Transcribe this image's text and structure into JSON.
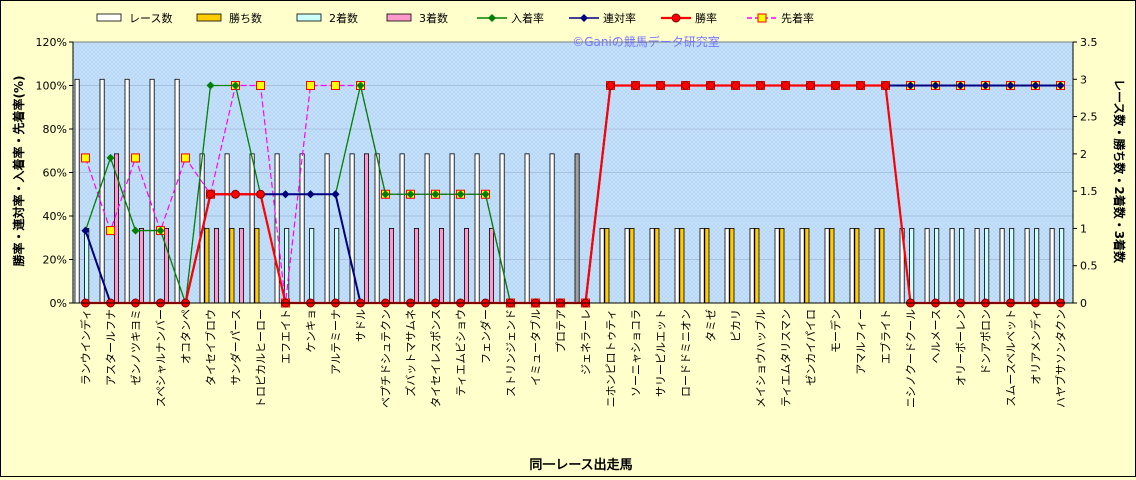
{
  "chart_data": {
    "type": "bar+line",
    "watermark": "©Ganiの競馬データ研究室",
    "xlabel": "同一レース出走馬",
    "ylabel_left": "勝率・連対率・入着率・先着率(%)",
    "ylabel_right": "レース数・勝ち数・2着数・3着数",
    "ylim_left": [
      0,
      120
    ],
    "ylim_right": [
      0,
      3.5
    ],
    "left_ticks": [
      "0%",
      "20%",
      "40%",
      "60%",
      "80%",
      "100%",
      "120%"
    ],
    "right_ticks": [
      "0",
      "0.5",
      "1",
      "1.5",
      "2",
      "2.5",
      "3",
      "3.5"
    ],
    "legend": [
      {
        "name": "レース数",
        "kind": "bar",
        "color": "#ffffff"
      },
      {
        "name": "勝ち数",
        "kind": "bar",
        "color": "#ffcc00"
      },
      {
        "name": "2着数",
        "kind": "bar",
        "color": "#ccffff"
      },
      {
        "name": "3着数",
        "kind": "bar",
        "color": "#ff99cc"
      },
      {
        "name": "入着率",
        "kind": "line",
        "color": "#008000"
      },
      {
        "name": "連対率",
        "kind": "line",
        "color": "#000080"
      },
      {
        "name": "勝率",
        "kind": "line",
        "color": "#ff0000"
      },
      {
        "name": "先着率",
        "kind": "line",
        "color": "#ff00ff"
      }
    ],
    "categories": [
      "ランウインディ",
      "アスタールフナ",
      "ゼンノツキヨミ",
      "スペシャルナンバー",
      "オコタンペ",
      "タイセイブロウ",
      "サンダーパース",
      "トロピカルヒーロー",
      "エフエイト",
      "ケンキョ",
      "アルテミーナ",
      "サドル",
      "ベプチドシュテクン",
      "ズバットマサムネ",
      "タイセイレスポンス",
      "ティエムビショウ",
      "フェンダー",
      "ストリンジェンド",
      "イミュータブル",
      "プロテア",
      "ジェネラーレ",
      "ニホンピロトゥティ",
      "ソーニャショコラ",
      "サリーピルエット",
      "ロードドミニオン",
      "タミゼ",
      "ピカリ",
      "メイショウハッブル",
      "ティエムタリスマン",
      "ゼンカイパイロ",
      "モーデン",
      "アマルフィー",
      "エブライト",
      "ニシノクードクール",
      "ヘルメース",
      "オリーボーレン",
      "ドンアポロン",
      "スムースベルベット",
      "オリアメンディ",
      "ハヤブサソンタクン"
    ],
    "series": [
      {
        "name": "レース数",
        "values": [
          3,
          3,
          3,
          3,
          3,
          2,
          2,
          2,
          2,
          2,
          2,
          2,
          2,
          2,
          2,
          2,
          2,
          2,
          2,
          2,
          2,
          1,
          1,
          1,
          1,
          1,
          1,
          1,
          1,
          1,
          1,
          1,
          1,
          1,
          1,
          1,
          1,
          1,
          1,
          1
        ]
      },
      {
        "name": "勝ち数",
        "values": [
          0,
          0,
          0,
          0,
          0,
          1,
          1,
          1,
          0,
          0,
          0,
          0,
          0,
          0,
          0,
          0,
          0,
          0,
          0,
          0,
          0,
          1,
          1,
          1,
          1,
          1,
          1,
          1,
          1,
          1,
          1,
          1,
          1,
          0,
          0,
          0,
          0,
          0,
          0,
          0
        ]
      },
      {
        "name": "2着数",
        "values": [
          1,
          0,
          0,
          0,
          0,
          0,
          0,
          0,
          1,
          1,
          1,
          0,
          0,
          0,
          0,
          0,
          0,
          0,
          0,
          0,
          0,
          0,
          0,
          0,
          0,
          0,
          0,
          0,
          0,
          0,
          0,
          0,
          0,
          1,
          1,
          1,
          1,
          1,
          1,
          1
        ]
      },
      {
        "name": "3着数",
        "values": [
          0,
          2,
          1,
          1,
          0,
          1,
          1,
          0,
          0,
          0,
          0,
          2,
          1,
          1,
          1,
          1,
          1,
          0,
          0,
          0,
          0,
          0,
          0,
          0,
          0,
          0,
          0,
          0,
          0,
          0,
          0,
          0,
          0,
          0,
          0,
          0,
          0,
          0,
          0,
          0
        ]
      },
      {
        "name": "入着率",
        "values": [
          33.3,
          66.7,
          33.3,
          33.3,
          0,
          100,
          100,
          50,
          50,
          50,
          50,
          100,
          50,
          50,
          50,
          50,
          50,
          0,
          0,
          0,
          0,
          100,
          100,
          100,
          100,
          100,
          100,
          100,
          100,
          100,
          100,
          100,
          100,
          100,
          100,
          100,
          100,
          100,
          100,
          100
        ]
      },
      {
        "name": "連対率",
        "values": [
          33.3,
          0,
          0,
          0,
          0,
          50,
          50,
          50,
          50,
          50,
          50,
          0,
          0,
          0,
          0,
          0,
          0,
          0,
          0,
          0,
          0,
          100,
          100,
          100,
          100,
          100,
          100,
          100,
          100,
          100,
          100,
          100,
          100,
          100,
          100,
          100,
          100,
          100,
          100,
          100
        ]
      },
      {
        "name": "勝率",
        "values": [
          0,
          0,
          0,
          0,
          0,
          50,
          50,
          50,
          0,
          0,
          0,
          0,
          0,
          0,
          0,
          0,
          0,
          0,
          0,
          0,
          0,
          100,
          100,
          100,
          100,
          100,
          100,
          100,
          100,
          100,
          100,
          100,
          100,
          0,
          0,
          0,
          0,
          0,
          0,
          0
        ]
      },
      {
        "name": "先着率",
        "values": [
          66.7,
          33.3,
          66.7,
          33.3,
          66.7,
          50,
          100,
          100,
          0,
          100,
          100,
          100,
          50,
          50,
          50,
          50,
          50,
          0,
          0,
          0,
          0,
          100,
          100,
          100,
          100,
          100,
          100,
          100,
          100,
          100,
          100,
          100,
          100,
          100,
          100,
          100,
          100,
          100,
          100,
          100
        ]
      }
    ]
  }
}
